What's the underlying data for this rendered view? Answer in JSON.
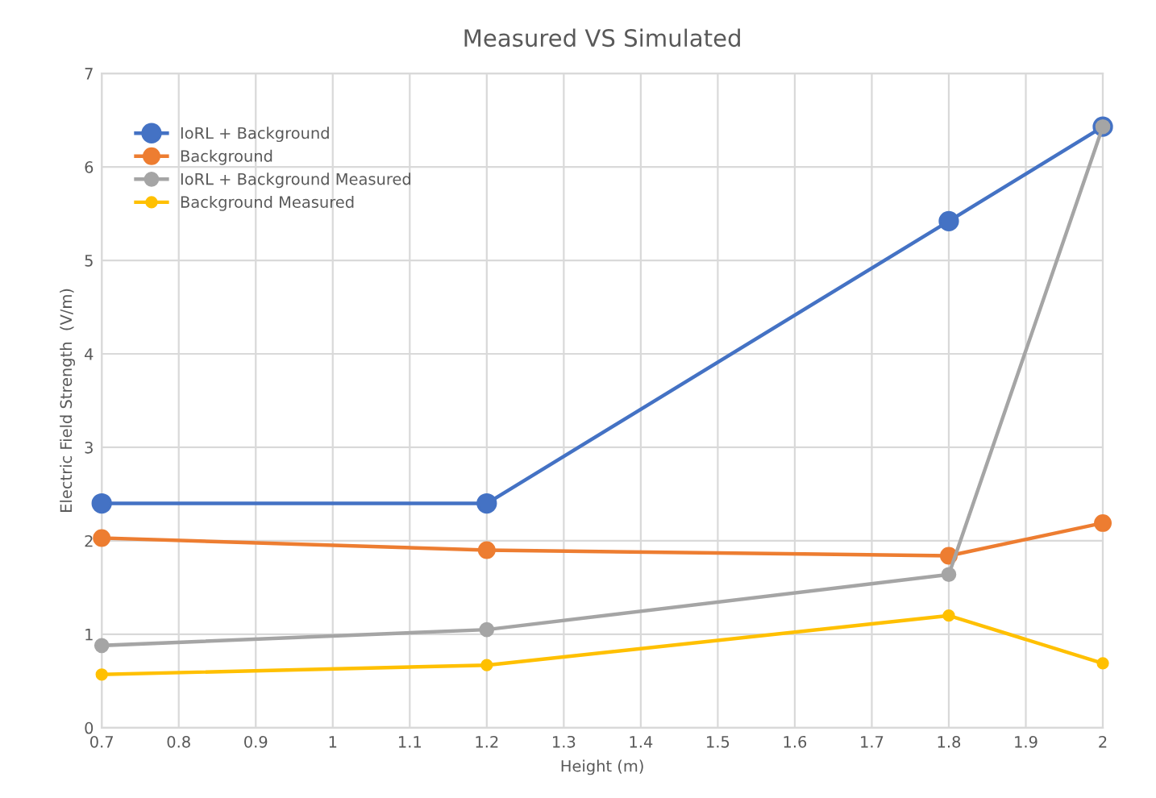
{
  "chart_data": {
    "type": "line",
    "title": "Measured VS Simulated",
    "xlabel": "Height (m)",
    "ylabel": "Electric Field Strength  (V/m)",
    "x": [
      0.7,
      1.2,
      1.8,
      2
    ],
    "series": [
      {
        "name": "IoRL + Background",
        "color": "#4472c4",
        "values": [
          2.4,
          2.4,
          5.42,
          6.43
        ]
      },
      {
        "name": "Background",
        "color": "#ed7d31",
        "values": [
          2.03,
          1.9,
          1.84,
          2.19
        ]
      },
      {
        "name": "IoRL + Background Measured",
        "color": "#a5a5a5",
        "values": [
          0.88,
          1.05,
          1.64,
          6.43
        ]
      },
      {
        "name": "Background Measured",
        "color": "#ffc000",
        "values": [
          0.57,
          0.67,
          1.2,
          0.69
        ]
      }
    ],
    "xlim": [
      0.7,
      2
    ],
    "xticks": [
      0.7,
      0.8,
      0.9,
      1,
      1.1,
      1.2,
      1.3,
      1.4,
      1.5,
      1.6,
      1.7,
      1.8,
      1.9,
      2
    ],
    "ylim": [
      0,
      7
    ],
    "yticks": [
      0,
      1,
      2,
      3,
      4,
      5,
      6,
      7
    ],
    "grid": true,
    "legend": "top left",
    "marker": "circle",
    "line_style": "solid"
  }
}
